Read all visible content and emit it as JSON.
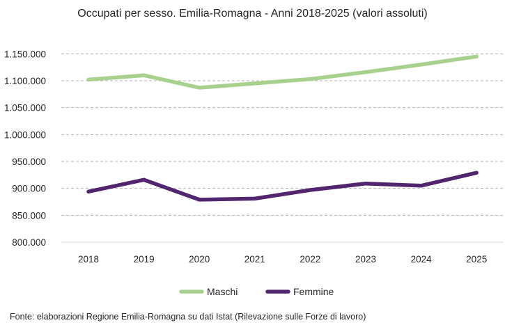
{
  "chart_data": {
    "type": "line",
    "title": "Occupati per sesso. Emilia-Romagna - Anni 2018-2025 (valori assoluti)",
    "xlabel": "",
    "ylabel": "",
    "categories": [
      "2018",
      "2019",
      "2020",
      "2021",
      "2022",
      "2023",
      "2024",
      "2025"
    ],
    "ylim": [
      800000,
      1150000
    ],
    "yticks": [
      800000,
      850000,
      900000,
      950000,
      1000000,
      1050000,
      1100000,
      1150000
    ],
    "ytick_labels": [
      "800.000",
      "850.000",
      "900.000",
      "950.000",
      "1.000.000",
      "1.050.000",
      "1.100.000",
      "1.150.000"
    ],
    "grid": true,
    "legend_position": "bottom",
    "series": [
      {
        "name": "Maschi",
        "color": "#a9d18e",
        "values": [
          1102000,
          1110000,
          1087000,
          1095000,
          1103000,
          1116000,
          1130000,
          1145000
        ]
      },
      {
        "name": "Femmine",
        "color": "#52256f",
        "values": [
          894000,
          916000,
          879000,
          881000,
          897000,
          909000,
          905000,
          929000
        ]
      }
    ]
  },
  "source": "Fonte: elaborazioni Regione Emilia-Romagna su dati Istat (Rilevazione sulle Forze di lavoro)"
}
